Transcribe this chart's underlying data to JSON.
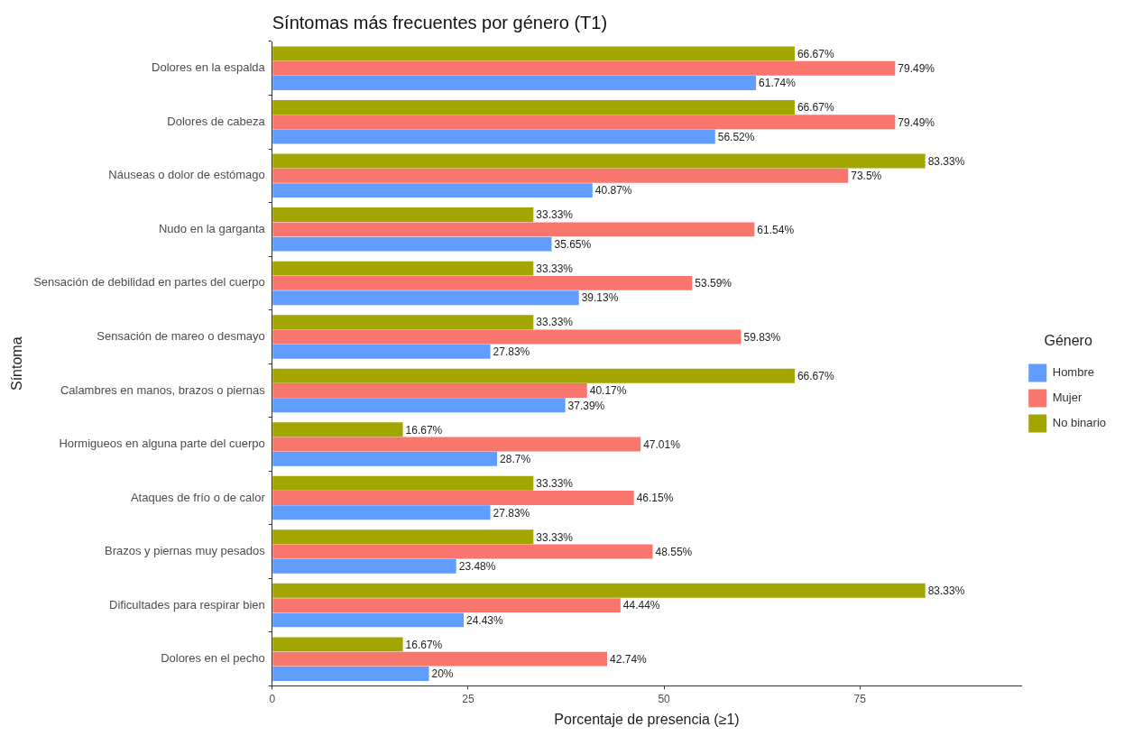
{
  "chart_data": {
    "type": "bar",
    "orientation": "horizontal",
    "title": "Síntomas más frecuentes por género (T1)",
    "xlabel": "Porcentaje de presencia (≥1)",
    "ylabel": "Síntoma",
    "legend_title": "Género",
    "legend": "right",
    "grid": false,
    "categories": [
      "Dolores en la espalda",
      "Dolores de cabeza",
      "Náuseas o dolor de estómago",
      "Nudo en la garganta",
      "Sensación de debilidad en partes del cuerpo",
      "Sensación de mareo o desmayo",
      "Calambres en manos, brazos o piernas",
      "Hormigueos en alguna parte del cuerpo",
      "Ataques de frío o de calor",
      "Brazos y piernas muy pesados",
      "Dificultades para respirar bien",
      "Dolores en el pecho"
    ],
    "series": [
      {
        "name": "Hombre",
        "color": "#619cff",
        "values": [
          61.74,
          56.52,
          40.87,
          35.65,
          39.13,
          27.83,
          37.39,
          28.7,
          27.83,
          23.48,
          24.43,
          20
        ],
        "value_labels": [
          "61.74%",
          "56.52%",
          "40.87%",
          "35.65%",
          "39.13%",
          "27.83%",
          "37.39%",
          "28.7%",
          "27.83%",
          "23.48%",
          "24.43%",
          "20%"
        ]
      },
      {
        "name": "Mujer",
        "color": "#f8766d",
        "values": [
          79.49,
          79.49,
          73.5,
          61.54,
          53.59,
          59.83,
          40.17,
          47.01,
          46.15,
          48.55,
          44.44,
          42.74
        ],
        "value_labels": [
          "79.49%",
          "79.49%",
          "73.5%",
          "61.54%",
          "53.59%",
          "59.83%",
          "40.17%",
          "47.01%",
          "46.15%",
          "48.55%",
          "44.44%",
          "42.74%"
        ]
      },
      {
        "name": "No binario",
        "color": "#a3a500",
        "values": [
          66.67,
          66.67,
          83.33,
          33.33,
          33.33,
          33.33,
          66.67,
          16.67,
          33.33,
          33.33,
          83.33,
          16.67
        ],
        "value_labels": [
          "66.67%",
          "66.67%",
          "83.33%",
          "33.33%",
          "33.33%",
          "33.33%",
          "66.67%",
          "16.67%",
          "33.33%",
          "33.33%",
          "83.33%",
          "16.67%"
        ]
      }
    ],
    "xlim": [
      0,
      95.6
    ],
    "xticks": [
      0,
      25,
      50,
      75
    ]
  }
}
